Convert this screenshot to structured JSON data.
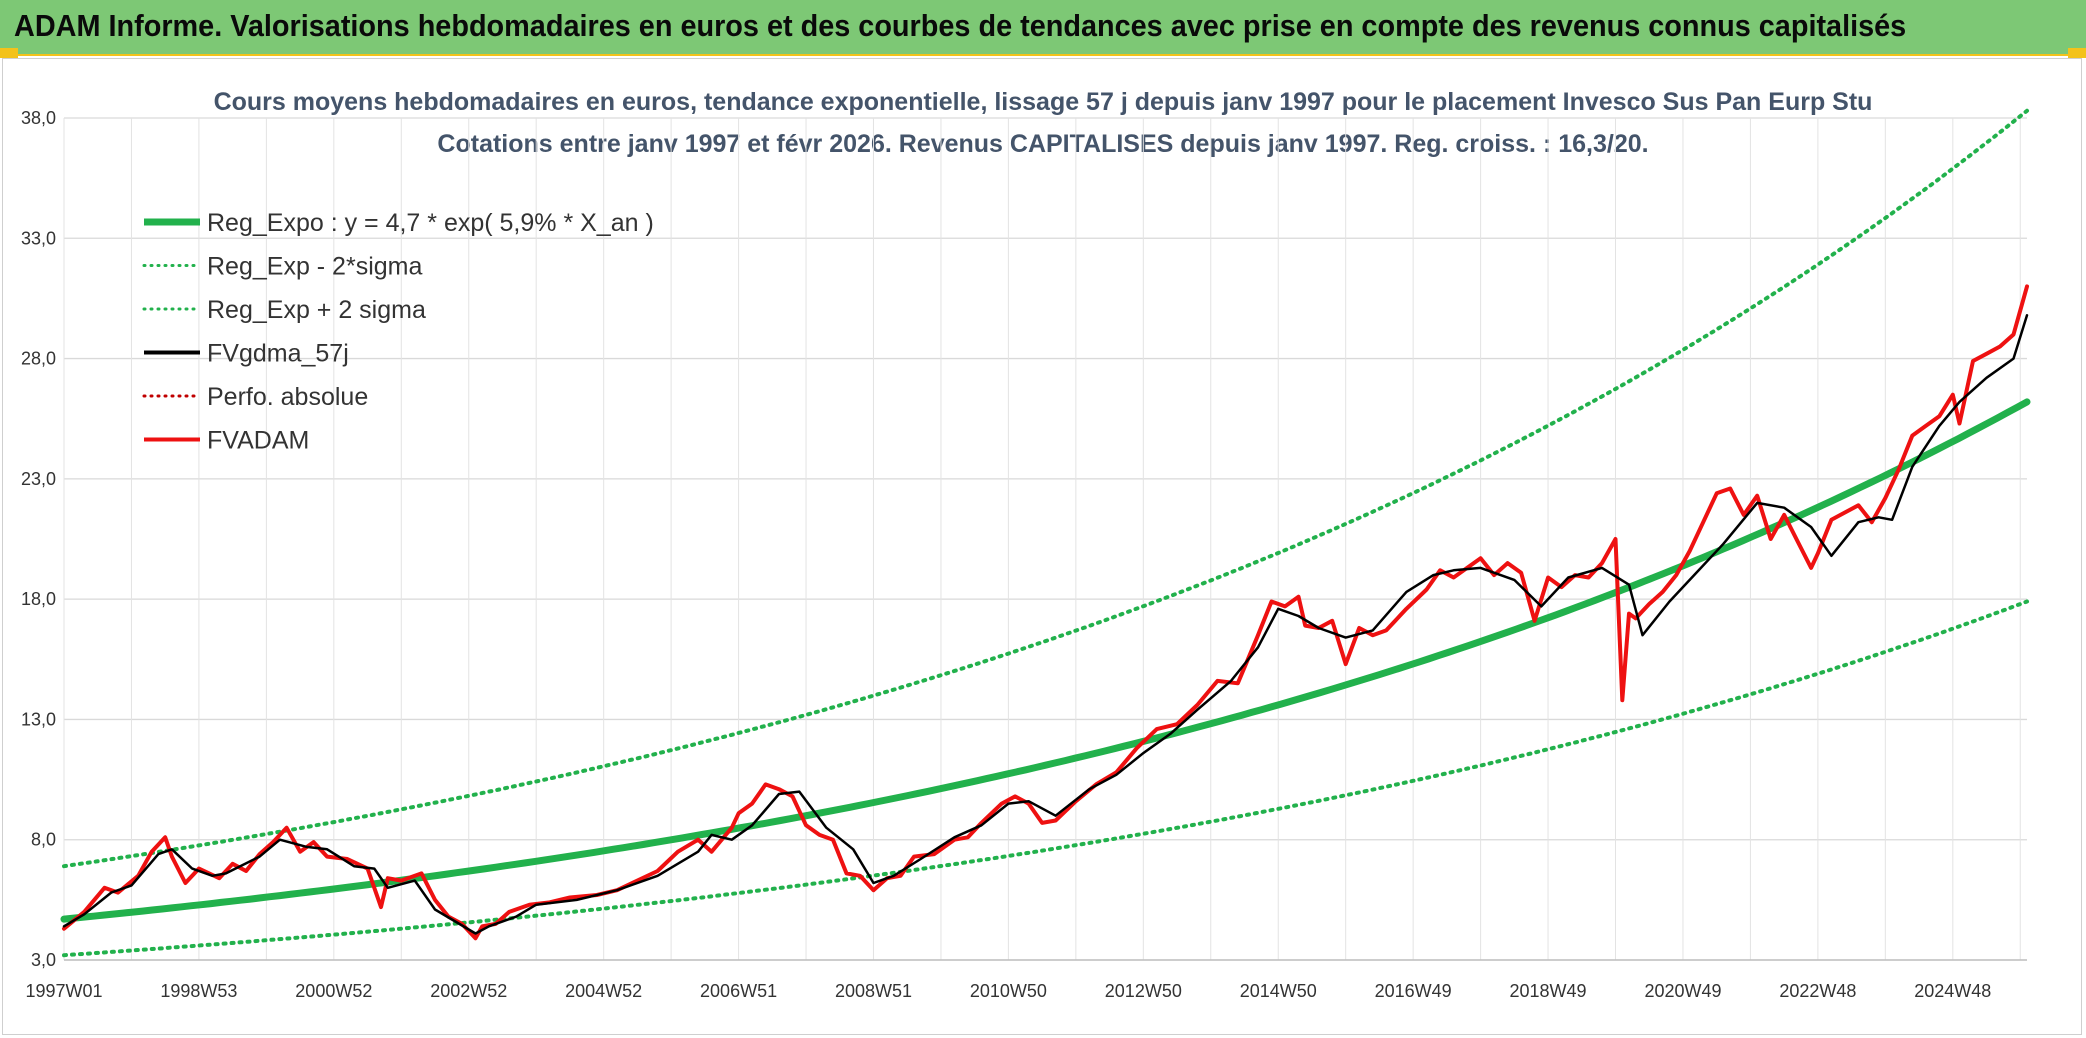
{
  "header": {
    "title": "ADAM Informe. Valorisations hebdomadaires en euros et des courbes de tendances avec prise en compte des revenus connus capitalisés"
  },
  "chart_data": {
    "type": "line",
    "title": "Cours moyens hebdomadaires en euros, tendance exponentielle, lissage 57 j depuis janv 1997 pour le placement Invesco Sus Pan Eurp Stu",
    "subtitle": "Cotations entre janv 1997 et févr 2026. Revenus CAPITALISES depuis janv 1997. Reg. croiss. : 16,3/20.",
    "xlabel": "",
    "ylabel": "",
    "xlim": [
      1997.0,
      2026.1
    ],
    "ylim": [
      3.0,
      38.0
    ],
    "y_ticks": [
      "3,0",
      "8,0",
      "13,0",
      "18,0",
      "23,0",
      "28,0",
      "33,0",
      "38,0"
    ],
    "y_tick_values": [
      3,
      8,
      13,
      18,
      23,
      28,
      33,
      38
    ],
    "x_ticks": [
      "1997W01",
      "1998W53",
      "2000W52",
      "2002W52",
      "2004W52",
      "2006W51",
      "2008W51",
      "2010W50",
      "2012W50",
      "2014W50",
      "2016W49",
      "2018W49",
      "2020W49",
      "2022W48",
      "2024W48"
    ],
    "x_tick_values": [
      1997.0,
      1999.0,
      2001.0,
      2003.0,
      2005.0,
      2007.0,
      2009.0,
      2011.0,
      2013.0,
      2015.0,
      2017.0,
      2019.0,
      2021.0,
      2023.0,
      2025.0
    ],
    "grid": true,
    "legend_position": "top-left",
    "series": [
      {
        "name": "Reg_Expo : y = 4,7 * exp( 5,9% *  X_an )",
        "style": "solid-thick",
        "color": "#22b14c",
        "x": [
          1997.0,
          2001.0,
          2005.0,
          2009.0,
          2013.0,
          2017.0,
          2021.0,
          2026.1
        ],
        "values": [
          4.7,
          5.9,
          7.5,
          9.5,
          12.0,
          15.1,
          19.1,
          26.2
        ]
      },
      {
        "name": "Reg_Exp - 2*sigma",
        "style": "dotted",
        "color": "#22b14c",
        "x": [
          1997.0,
          2001.0,
          2005.0,
          2009.0,
          2013.0,
          2017.0,
          2021.0,
          2026.1
        ],
        "values": [
          3.2,
          4.0,
          5.1,
          6.5,
          8.2,
          10.3,
          13.0,
          17.9
        ]
      },
      {
        "name": "Reg_Exp + 2 sigma",
        "style": "dotted",
        "color": "#22b14c",
        "x": [
          1997.0,
          2001.0,
          2005.0,
          2009.0,
          2013.0,
          2017.0,
          2021.0,
          2026.1
        ],
        "values": [
          6.9,
          8.6,
          10.9,
          13.8,
          17.4,
          22.0,
          27.8,
          38.3
        ]
      },
      {
        "name": "FVgdma_57j",
        "style": "solid",
        "color": "#000000",
        "x": [
          1997.0,
          1997.3,
          1997.7,
          1998.0,
          1998.4,
          1998.6,
          1998.9,
          1999.2,
          1999.4,
          1999.9,
          2000.2,
          2000.6,
          2000.9,
          2001.3,
          2001.6,
          2001.8,
          2002.2,
          2002.5,
          2002.8,
          2003.1,
          2003.3,
          2003.7,
          2004.0,
          2004.6,
          2005.2,
          2005.8,
          2006.4,
          2006.6,
          2006.9,
          2007.2,
          2007.6,
          2007.9,
          2008.3,
          2008.7,
          2009.0,
          2009.3,
          2009.7,
          2010.2,
          2010.6,
          2011.0,
          2011.3,
          2011.7,
          2012.2,
          2012.6,
          2013.0,
          2013.4,
          2013.8,
          2014.3,
          2014.7,
          2015.0,
          2015.3,
          2015.6,
          2016.0,
          2016.4,
          2016.9,
          2017.3,
          2017.6,
          2018.0,
          2018.5,
          2018.9,
          2019.3,
          2019.8,
          2020.2,
          2020.4,
          2020.8,
          2021.1,
          2021.6,
          2022.1,
          2022.5,
          2022.9,
          2023.2,
          2023.6,
          2023.9,
          2024.1,
          2024.4,
          2024.8,
          2025.1,
          2025.5,
          2025.9,
          2026.1
        ],
        "values": [
          4.4,
          4.9,
          5.8,
          6.1,
          7.4,
          7.6,
          6.8,
          6.5,
          6.6,
          7.3,
          8.0,
          7.7,
          7.6,
          6.9,
          6.8,
          6.0,
          6.3,
          5.1,
          4.6,
          4.1,
          4.4,
          4.8,
          5.3,
          5.5,
          5.9,
          6.5,
          7.5,
          8.2,
          8.0,
          8.6,
          9.9,
          10.0,
          8.5,
          7.6,
          6.2,
          6.5,
          7.2,
          8.1,
          8.6,
          9.5,
          9.6,
          9.0,
          10.1,
          10.7,
          11.6,
          12.4,
          13.4,
          14.6,
          16.0,
          17.6,
          17.3,
          16.8,
          16.4,
          16.7,
          18.3,
          19.0,
          19.2,
          19.3,
          18.8,
          17.7,
          18.9,
          19.3,
          18.6,
          16.5,
          17.9,
          18.8,
          20.3,
          22.0,
          21.8,
          21.0,
          19.8,
          21.2,
          21.4,
          21.3,
          23.5,
          25.2,
          26.2,
          27.2,
          28.0,
          29.8
        ]
      },
      {
        "name": "Perfo. absolue",
        "style": "dotted",
        "color": "#c00000",
        "x": [],
        "values": []
      },
      {
        "name": "FVADAM",
        "style": "solid-thick",
        "color": "#ee1111",
        "x": [
          1997.0,
          1997.3,
          1997.6,
          1997.8,
          1998.1,
          1998.3,
          1998.5,
          1998.6,
          1998.8,
          1999.0,
          1999.3,
          1999.5,
          1999.7,
          1999.9,
          2000.1,
          2000.3,
          2000.5,
          2000.7,
          2000.9,
          2001.2,
          2001.5,
          2001.7,
          2001.8,
          2002.0,
          2002.3,
          2002.5,
          2002.7,
          2002.9,
          2003.1,
          2003.2,
          2003.4,
          2003.6,
          2003.9,
          2004.2,
          2004.5,
          2004.9,
          2005.2,
          2005.5,
          2005.8,
          2006.1,
          2006.4,
          2006.6,
          2006.9,
          2007.0,
          2007.2,
          2007.4,
          2007.6,
          2007.8,
          2008.0,
          2008.2,
          2008.4,
          2008.6,
          2008.8,
          2009.0,
          2009.2,
          2009.4,
          2009.6,
          2009.9,
          2010.2,
          2010.4,
          2010.6,
          2010.9,
          2011.1,
          2011.3,
          2011.5,
          2011.7,
          2012.0,
          2012.3,
          2012.6,
          2012.9,
          2013.2,
          2013.5,
          2013.8,
          2014.1,
          2014.4,
          2014.7,
          2014.9,
          2015.1,
          2015.3,
          2015.4,
          2015.6,
          2015.8,
          2016.0,
          2016.2,
          2016.4,
          2016.6,
          2016.9,
          2017.2,
          2017.4,
          2017.6,
          2017.8,
          2018.0,
          2018.2,
          2018.4,
          2018.6,
          2018.8,
          2019.0,
          2019.2,
          2019.4,
          2019.6,
          2019.8,
          2020.0,
          2020.1,
          2020.2,
          2020.3,
          2020.5,
          2020.7,
          2020.9,
          2021.1,
          2021.3,
          2021.5,
          2021.7,
          2021.9,
          2022.1,
          2022.3,
          2022.5,
          2022.7,
          2022.9,
          2023.0,
          2023.2,
          2023.4,
          2023.6,
          2023.8,
          2024.0,
          2024.2,
          2024.4,
          2024.6,
          2024.8,
          2025.0,
          2025.1,
          2025.3,
          2025.5,
          2025.7,
          2025.9,
          2026.1
        ],
        "values": [
          4.3,
          5.0,
          6.0,
          5.8,
          6.5,
          7.5,
          8.1,
          7.3,
          6.2,
          6.8,
          6.4,
          7.0,
          6.7,
          7.4,
          7.9,
          8.5,
          7.5,
          7.9,
          7.3,
          7.2,
          6.8,
          5.2,
          6.4,
          6.3,
          6.6,
          5.5,
          4.8,
          4.5,
          3.9,
          4.4,
          4.5,
          5.0,
          5.3,
          5.4,
          5.6,
          5.7,
          5.9,
          6.3,
          6.7,
          7.5,
          8.0,
          7.5,
          8.5,
          9.1,
          9.5,
          10.3,
          10.1,
          9.8,
          8.6,
          8.2,
          8.0,
          6.6,
          6.5,
          5.9,
          6.4,
          6.5,
          7.3,
          7.4,
          8.0,
          8.1,
          8.7,
          9.5,
          9.8,
          9.5,
          8.7,
          8.8,
          9.6,
          10.3,
          10.8,
          11.8,
          12.6,
          12.8,
          13.6,
          14.6,
          14.5,
          16.5,
          17.9,
          17.7,
          18.1,
          16.9,
          16.8,
          17.1,
          15.3,
          16.8,
          16.5,
          16.7,
          17.6,
          18.4,
          19.2,
          18.9,
          19.3,
          19.7,
          19.0,
          19.5,
          19.1,
          17.1,
          18.9,
          18.5,
          19.0,
          18.9,
          19.5,
          20.5,
          13.8,
          17.4,
          17.2,
          17.8,
          18.3,
          19.0,
          20.0,
          21.2,
          22.4,
          22.6,
          21.5,
          22.3,
          20.5,
          21.5,
          20.4,
          19.3,
          19.9,
          21.3,
          21.6,
          21.9,
          21.2,
          22.2,
          23.4,
          24.8,
          25.2,
          25.6,
          26.5,
          25.3,
          27.9,
          28.2,
          28.5,
          29.0,
          31.0
        ]
      }
    ]
  }
}
